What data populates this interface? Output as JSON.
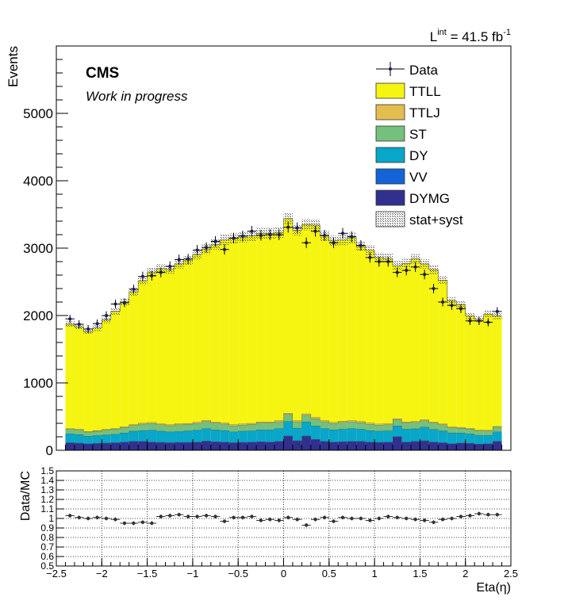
{
  "chart_data": [
    {
      "type": "stacked-histogram",
      "title": "",
      "lumi_text": {
        "L": "L",
        "sup": "int",
        "value": " = 41.5 fb",
        "unit_sup": "-1"
      },
      "cms_label": "CMS",
      "cms_sub": "Work in progress",
      "xlabel": "Eta(η)",
      "ylabel": "Events",
      "xlim": [
        -2.5,
        2.5
      ],
      "ylim": [
        0,
        6000
      ],
      "y_ticks": [
        0,
        1000,
        2000,
        3000,
        4000,
        5000
      ],
      "y_tick_labels": [
        "0",
        "1000",
        "2000",
        "3000",
        "4000",
        "5000"
      ],
      "legend_position": "top-right",
      "bin_edges": [
        -2.4,
        -2.3,
        -2.2,
        -2.1,
        -2.0,
        -1.9,
        -1.8,
        -1.7,
        -1.6,
        -1.5,
        -1.4,
        -1.3,
        -1.2,
        -1.1,
        -1.0,
        -0.9,
        -0.8,
        -0.7,
        -0.6,
        -0.5,
        -0.4,
        -0.3,
        -0.2,
        -0.1,
        0.0,
        0.1,
        0.2,
        0.3,
        0.4,
        0.5,
        0.6,
        0.7,
        0.8,
        0.9,
        1.0,
        1.1,
        1.2,
        1.3,
        1.4,
        1.5,
        1.6,
        1.7,
        1.8,
        1.9,
        2.0,
        2.1,
        2.2,
        2.3,
        2.4
      ],
      "series": [
        {
          "name": "DYMG",
          "color": "#31308e",
          "values": [
            110,
            105,
            95,
            100,
            105,
            110,
            120,
            130,
            130,
            120,
            115,
            110,
            115,
            115,
            120,
            135,
            125,
            120,
            110,
            115,
            120,
            125,
            120,
            130,
            210,
            140,
            210,
            160,
            130,
            120,
            125,
            130,
            130,
            120,
            115,
            120,
            200,
            120,
            130,
            140,
            120,
            110,
            95,
            105,
            100,
            90,
            95,
            130
          ]
        },
        {
          "name": "VV",
          "color": "#1464d8",
          "values": [
            5,
            5,
            5,
            5,
            5,
            5,
            5,
            5,
            5,
            5,
            5,
            5,
            5,
            5,
            5,
            5,
            5,
            5,
            5,
            5,
            5,
            5,
            5,
            5,
            5,
            5,
            5,
            5,
            5,
            5,
            5,
            5,
            5,
            5,
            5,
            5,
            5,
            5,
            5,
            5,
            5,
            5,
            5,
            5,
            5,
            5,
            5,
            5
          ]
        },
        {
          "name": "DY",
          "color": "#08a6c8",
          "values": [
            130,
            125,
            110,
            115,
            120,
            125,
            135,
            150,
            160,
            175,
            165,
            160,
            160,
            170,
            175,
            185,
            175,
            170,
            160,
            165,
            165,
            175,
            180,
            190,
            215,
            185,
            210,
            200,
            190,
            180,
            185,
            190,
            180,
            170,
            165,
            165,
            160,
            190,
            185,
            200,
            185,
            175,
            160,
            150,
            140,
            130,
            125,
            140
          ]
        },
        {
          "name": "ST",
          "color": "#74c07c",
          "values": [
            70,
            68,
            62,
            65,
            72,
            75,
            80,
            85,
            95,
            100,
            95,
            92,
            100,
            95,
            100,
            105,
            100,
            95,
            90,
            92,
            95,
            100,
            100,
            100,
            105,
            95,
            100,
            105,
            100,
            95,
            100,
            100,
            98,
            92,
            90,
            90,
            90,
            92,
            95,
            95,
            95,
            90,
            75,
            70,
            70,
            65,
            65,
            70
          ]
        },
        {
          "name": "TTLJ",
          "color": "#e4bd4f",
          "values": [
            10,
            10,
            10,
            10,
            11,
            12,
            13,
            14,
            15,
            15,
            15,
            16,
            16,
            16,
            17,
            17,
            17,
            17,
            17,
            17,
            17,
            18,
            18,
            18,
            18,
            18,
            18,
            18,
            18,
            18,
            17,
            17,
            17,
            17,
            16,
            16,
            16,
            16,
            15,
            15,
            15,
            14,
            13,
            12,
            11,
            11,
            10,
            10
          ]
        },
        {
          "name": "TTLL",
          "color": "#f5f511",
          "values": [
            1545,
            1520,
            1480,
            1520,
            1620,
            1735,
            1850,
            1970,
            2110,
            2225,
            2300,
            2305,
            2370,
            2420,
            2490,
            2540,
            2630,
            2715,
            2760,
            2770,
            2780,
            2795,
            2795,
            2790,
            2885,
            2825,
            2805,
            2855,
            2735,
            2690,
            2690,
            2710,
            2600,
            2565,
            2470,
            2450,
            2270,
            2350,
            2410,
            2310,
            2260,
            2130,
            1870,
            1820,
            1670,
            1640,
            1720,
            1640
          ]
        }
      ],
      "data_points": {
        "name": "Data",
        "values": [
          1950,
          1870,
          1800,
          1880,
          2000,
          2170,
          2190,
          2390,
          2580,
          2590,
          2640,
          2730,
          2830,
          2840,
          2970,
          3010,
          3100,
          2980,
          3150,
          3180,
          3250,
          3190,
          3200,
          3200,
          3310,
          3300,
          3080,
          3250,
          3190,
          3080,
          3220,
          3170,
          3040,
          2860,
          2800,
          2800,
          2640,
          2670,
          2720,
          2610,
          2400,
          2200,
          2150,
          2100,
          1920,
          1920,
          1900,
          2060
        ]
      },
      "uncertainty_label": "stat+syst"
    },
    {
      "type": "ratio",
      "ylabel": "Data/MC",
      "xlabel": "Eta(η)",
      "xlim": [
        -2.5,
        2.5
      ],
      "ylim": [
        0.5,
        1.5
      ],
      "y_ticks": [
        0.5,
        0.6,
        0.7,
        0.8,
        0.9,
        1.0,
        1.1,
        1.2,
        1.3,
        1.4,
        1.5
      ],
      "y_tick_labels": [
        "0.5",
        "0.6",
        "0.7",
        "0.8",
        "0.9",
        "1",
        "1.1",
        "1.2",
        "1.3",
        "1.4",
        "1.5"
      ],
      "x_ticks": [
        -2.5,
        -2,
        -1.5,
        -1,
        -0.5,
        0,
        0.5,
        1,
        1.5,
        2,
        2.5
      ],
      "x_tick_labels": [
        "−2.5",
        "−2",
        "−1.5",
        "−1",
        "−0.5",
        "0",
        "0.5",
        "1",
        "1.5",
        "2",
        "2.5"
      ],
      "grid": true,
      "values": [
        1.03,
        1.01,
        1.0,
        1.01,
        1.0,
        0.99,
        0.95,
        0.95,
        0.96,
        0.95,
        1.02,
        1.03,
        1.04,
        1.02,
        1.02,
        1.03,
        1.02,
        0.97,
        1.01,
        1.01,
        1.02,
        0.98,
        0.99,
        0.98,
        1.01,
        0.99,
        0.93,
        0.99,
        1.01,
        0.97,
        1.01,
        1.0,
        1.0,
        0.98,
        1.0,
        1.02,
        1.01,
        1.0,
        0.99,
        0.98,
        0.96,
        0.99,
        1.0,
        1.02,
        1.03,
        1.05,
        1.04,
        1.04
      ]
    }
  ]
}
